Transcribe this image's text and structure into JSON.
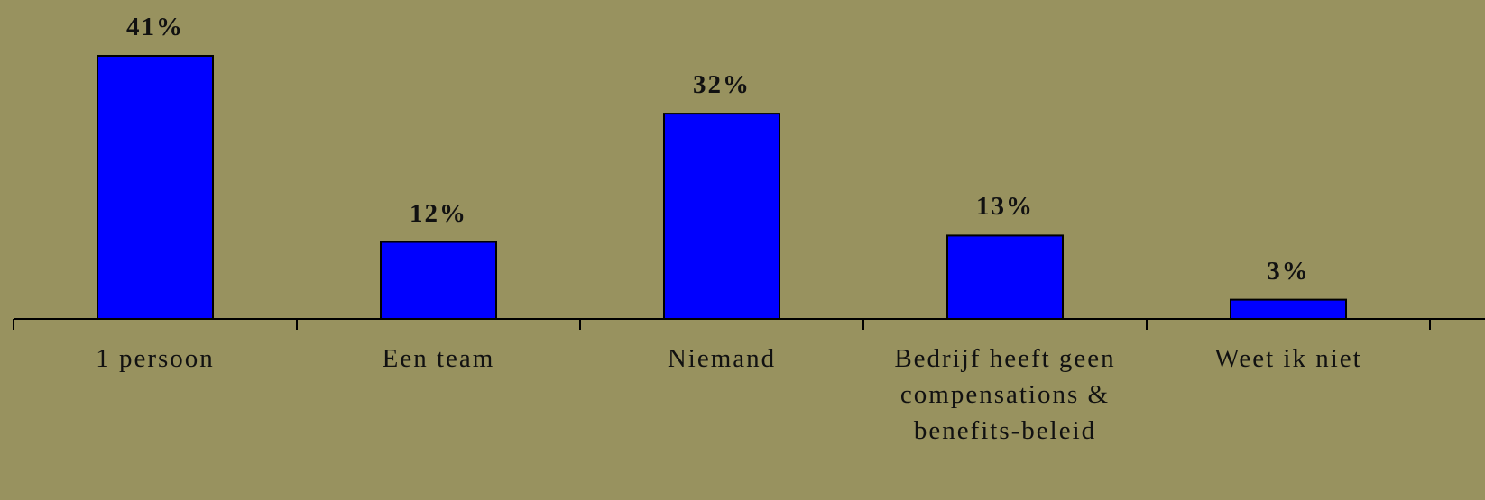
{
  "chart_data": {
    "type": "bar",
    "categories": [
      "1 persoon",
      "Een team",
      "Niemand",
      "Bedrijf heeft geen compensations & benefits-beleid",
      "Weet ik niet"
    ],
    "values": [
      41,
      12,
      32,
      13,
      3
    ],
    "value_labels": [
      "41%",
      "12%",
      "32%",
      "13%",
      "3%"
    ],
    "color": "#0000ff"
  }
}
